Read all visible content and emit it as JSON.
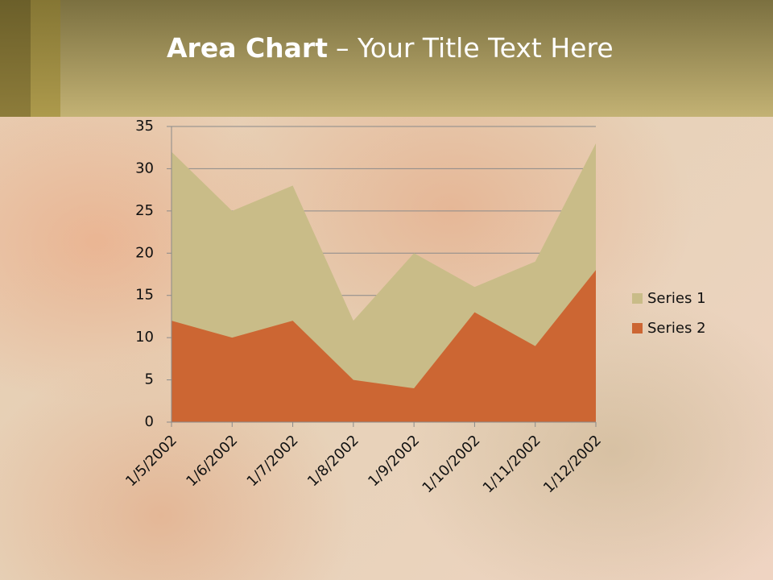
{
  "chart_data": {
    "type": "area",
    "title": {
      "bold": "Area Chart",
      "rest": "– Your Title Text Here"
    },
    "categories": [
      "1/5/2002",
      "1/6/2002",
      "1/7/2002",
      "1/8/2002",
      "1/9/2002",
      "1/10/2002",
      "1/11/2002",
      "1/12/2002"
    ],
    "series": [
      {
        "name": "Series 1",
        "color": "#c9bc88",
        "values": [
          32,
          25,
          28,
          12,
          20,
          16,
          19,
          33
        ]
      },
      {
        "name": "Series 2",
        "color": "#cc6633",
        "values": [
          12,
          10,
          12,
          5,
          4,
          13,
          9,
          18
        ]
      }
    ],
    "ylim": [
      0,
      35
    ],
    "yticks": [
      0,
      5,
      10,
      15,
      20,
      25,
      30,
      35
    ],
    "grid": true,
    "legend": "right"
  }
}
